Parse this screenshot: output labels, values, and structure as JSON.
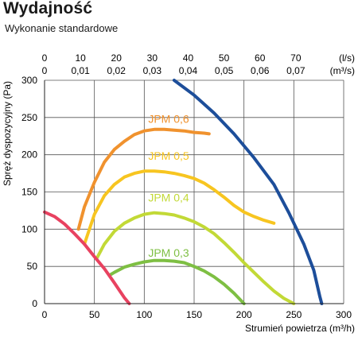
{
  "chart_data": {
    "type": "line",
    "title": "Wydajność",
    "subtitle": "Wykonanie standardowe",
    "xlabel": "Strumień powietrza (m³/h)",
    "ylabel": "Spręż dyspozycyjny (Pa)",
    "xlim": [
      0,
      300
    ],
    "ylim": [
      0,
      300
    ],
    "x_ticks": [
      "0",
      "50",
      "100",
      "150",
      "200",
      "250",
      "300"
    ],
    "y_ticks": [
      "0",
      "50",
      "100",
      "150",
      "200",
      "250",
      "300"
    ],
    "top_axis_ls": {
      "unit": "(l/s)",
      "ticks": [
        {
          "label": "0",
          "x": 0
        },
        {
          "label": "10",
          "x": 36
        },
        {
          "label": "20",
          "x": 72
        },
        {
          "label": "30",
          "x": 108
        },
        {
          "label": "40",
          "x": 144
        },
        {
          "label": "50",
          "x": 180
        },
        {
          "label": "60",
          "x": 216
        },
        {
          "label": "70",
          "x": 252
        }
      ]
    },
    "top_axis_m3s": {
      "unit": "(m³/s)",
      "ticks": [
        {
          "label": "0",
          "x": 0
        },
        {
          "label": "0,01",
          "x": 36
        },
        {
          "label": "0,02",
          "x": 72
        },
        {
          "label": "0,03",
          "x": 108
        },
        {
          "label": "0,04",
          "x": 144
        },
        {
          "label": "0,05",
          "x": 180
        },
        {
          "label": "0,06",
          "x": 216
        },
        {
          "label": "0,07",
          "x": 252
        }
      ]
    },
    "grid": true,
    "series": [
      {
        "name": "JPM 0,6",
        "color": "#f0922e",
        "label": {
          "x": 104,
          "y": 243
        },
        "points": [
          [
            34,
            100
          ],
          [
            40,
            130
          ],
          [
            50,
            163
          ],
          [
            60,
            190
          ],
          [
            70,
            207
          ],
          [
            80,
            218
          ],
          [
            90,
            227
          ],
          [
            100,
            232
          ],
          [
            110,
            234
          ],
          [
            120,
            234
          ],
          [
            130,
            233
          ],
          [
            140,
            232
          ],
          [
            150,
            230
          ],
          [
            160,
            229
          ],
          [
            165,
            228
          ]
        ]
      },
      {
        "name": "JPM 0,5",
        "color": "#f7c520",
        "label": {
          "x": 104,
          "y": 193
        },
        "points": [
          [
            40,
            80
          ],
          [
            50,
            120
          ],
          [
            60,
            145
          ],
          [
            70,
            160
          ],
          [
            80,
            170
          ],
          [
            90,
            175
          ],
          [
            100,
            178
          ],
          [
            110,
            178
          ],
          [
            120,
            177
          ],
          [
            130,
            175
          ],
          [
            140,
            172
          ],
          [
            150,
            168
          ],
          [
            160,
            162
          ],
          [
            170,
            153
          ],
          [
            180,
            143
          ],
          [
            190,
            132
          ],
          [
            200,
            123
          ],
          [
            210,
            117
          ],
          [
            220,
            112
          ],
          [
            230,
            108
          ]
        ]
      },
      {
        "name": "JPM 0,4",
        "color": "#c2d936",
        "label": {
          "x": 104,
          "y": 137
        },
        "points": [
          [
            52,
            60
          ],
          [
            60,
            80
          ],
          [
            70,
            97
          ],
          [
            80,
            108
          ],
          [
            90,
            115
          ],
          [
            100,
            120
          ],
          [
            110,
            122
          ],
          [
            120,
            121
          ],
          [
            130,
            119
          ],
          [
            140,
            115
          ],
          [
            150,
            110
          ],
          [
            160,
            103
          ],
          [
            170,
            94
          ],
          [
            180,
            82
          ],
          [
            190,
            69
          ],
          [
            200,
            55
          ],
          [
            210,
            42
          ],
          [
            220,
            29
          ],
          [
            230,
            17
          ],
          [
            240,
            7
          ],
          [
            250,
            0
          ]
        ]
      },
      {
        "name": "JPM 0,3",
        "color": "#7ebf43",
        "label": {
          "x": 104,
          "y": 63
        },
        "points": [
          [
            65,
            38
          ],
          [
            70,
            42
          ],
          [
            80,
            49
          ],
          [
            90,
            53
          ],
          [
            100,
            56
          ],
          [
            110,
            58
          ],
          [
            120,
            58
          ],
          [
            130,
            57
          ],
          [
            140,
            55
          ],
          [
            150,
            50
          ],
          [
            160,
            44
          ],
          [
            170,
            36
          ],
          [
            180,
            26
          ],
          [
            190,
            14
          ],
          [
            200,
            0
          ]
        ]
      },
      {
        "name": "",
        "color": "#e84260",
        "points": [
          [
            0,
            123
          ],
          [
            10,
            117
          ],
          [
            20,
            107
          ],
          [
            30,
            94
          ],
          [
            40,
            80
          ],
          [
            50,
            63
          ],
          [
            60,
            47
          ],
          [
            70,
            28
          ],
          [
            80,
            8
          ],
          [
            85,
            0
          ]
        ]
      },
      {
        "name": "",
        "color": "#1d4e9a",
        "points": [
          [
            130,
            300
          ],
          [
            150,
            280
          ],
          [
            170,
            256
          ],
          [
            190,
            228
          ],
          [
            210,
            196
          ],
          [
            230,
            160
          ],
          [
            245,
            122
          ],
          [
            260,
            80
          ],
          [
            270,
            45
          ],
          [
            276,
            10
          ],
          [
            278,
            0
          ]
        ]
      }
    ]
  }
}
